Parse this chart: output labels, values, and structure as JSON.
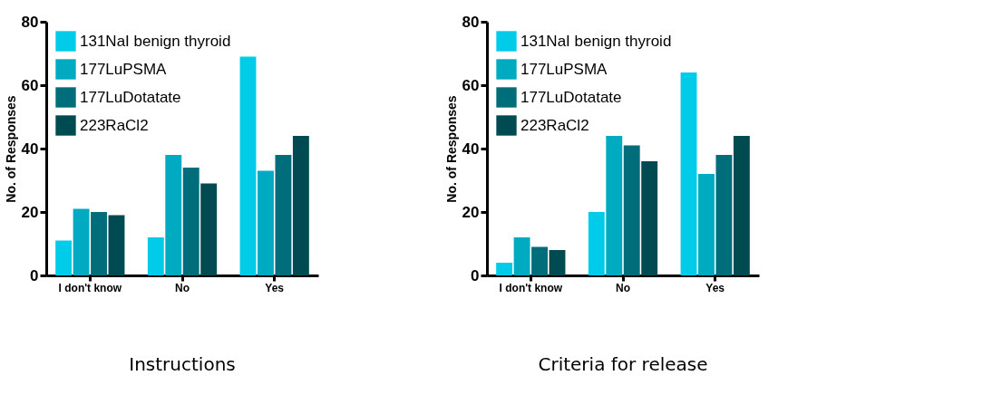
{
  "chart_data": [
    {
      "type": "bar",
      "title": "Instructions",
      "ylabel": "No. of Responses",
      "categories": [
        "I don't know",
        "No",
        "Yes"
      ],
      "ylim": [
        0,
        80
      ],
      "yticks": [
        0,
        20,
        40,
        60,
        80
      ],
      "grid": false,
      "legend": "top left",
      "series": [
        {
          "name": "131NaI benign thyroid",
          "color": "#00ccea",
          "values": [
            11,
            12,
            69
          ]
        },
        {
          "name": "177LuPSMA",
          "color": "#00aac0",
          "values": [
            21,
            38,
            33
          ]
        },
        {
          "name": "177LuDotatate",
          "color": "#006d7a",
          "values": [
            20,
            34,
            38
          ]
        },
        {
          "name": "223RaCl2",
          "color": "#004a52",
          "values": [
            19,
            29,
            44
          ]
        }
      ]
    },
    {
      "type": "bar",
      "title": "Criteria for release",
      "ylabel": "No. of Responses",
      "categories": [
        "I don't know",
        "No",
        "Yes"
      ],
      "ylim": [
        0,
        80
      ],
      "yticks": [
        0,
        20,
        40,
        60,
        80
      ],
      "grid": false,
      "legend": "top left",
      "series": [
        {
          "name": "131NaI benign thyroid",
          "color": "#00ccea",
          "values": [
            4,
            20,
            64
          ]
        },
        {
          "name": "177LuPSMA",
          "color": "#00aac0",
          "values": [
            12,
            44,
            32
          ]
        },
        {
          "name": "177LuDotatate",
          "color": "#006d7a",
          "values": [
            9,
            41,
            38
          ]
        },
        {
          "name": "223RaCl2",
          "color": "#004a52",
          "values": [
            8,
            36,
            44
          ]
        }
      ]
    }
  ]
}
